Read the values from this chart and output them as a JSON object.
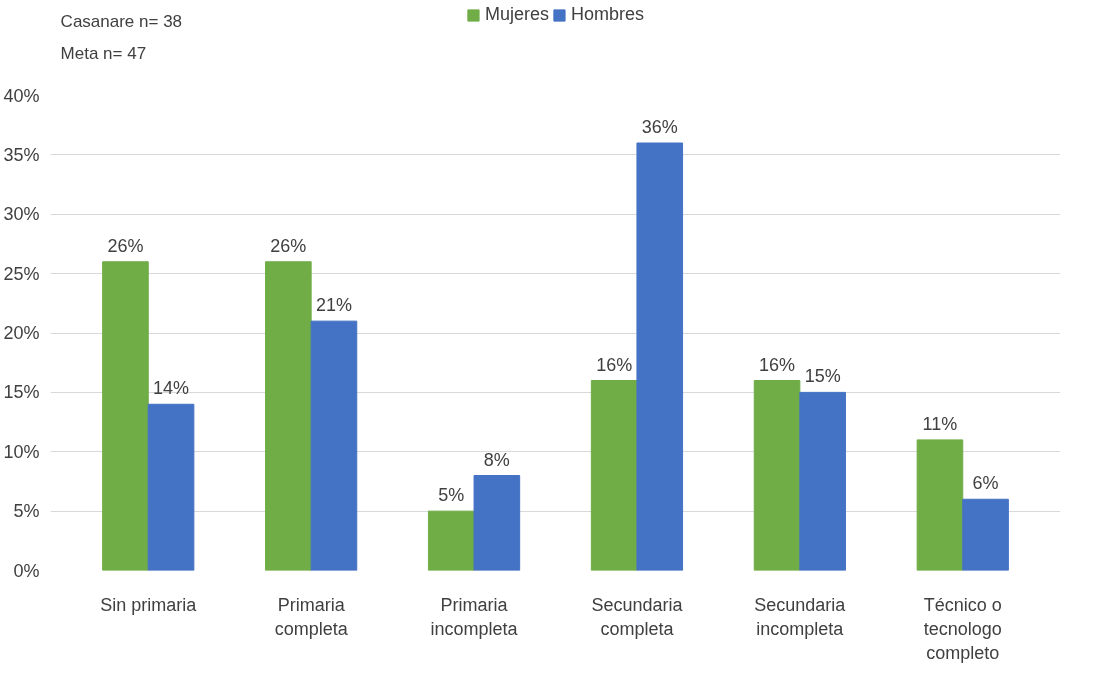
{
  "chart_data": {
    "type": "bar",
    "annotations": [
      "Casanare n= 38",
      "Meta n= 47"
    ],
    "categories": [
      "Sin primaria",
      "Primaria completa",
      "Primaria incompleta",
      "Secundaria completa",
      "Secundaria incompleta",
      "Técnico o tecnologo completo"
    ],
    "series": [
      {
        "name": "Mujeres",
        "color": "#70ad47",
        "values": [
          26,
          26,
          5,
          16,
          16,
          11
        ],
        "value_labels": [
          "26%",
          "26%",
          "5%",
          "16%",
          "16%",
          "11%"
        ]
      },
      {
        "name": "Hombres",
        "color": "#4472c4",
        "values": [
          14,
          21,
          8,
          36,
          15,
          6
        ],
        "value_labels": [
          "14%",
          "21%",
          "8%",
          "36%",
          "15%",
          "6%"
        ]
      }
    ],
    "ylim": [
      0,
      40
    ],
    "yticks": [
      {
        "value": 0,
        "label": "0%"
      },
      {
        "value": 5,
        "label": "5%"
      },
      {
        "value": 10,
        "label": "10%"
      },
      {
        "value": 15,
        "label": "15%"
      },
      {
        "value": 20,
        "label": "20%"
      },
      {
        "value": 25,
        "label": "25%"
      },
      {
        "value": 30,
        "label": "30%"
      },
      {
        "value": 35,
        "label": "35%"
      },
      {
        "value": 40,
        "label": "40%"
      }
    ],
    "grid": "y",
    "legend": "top"
  }
}
